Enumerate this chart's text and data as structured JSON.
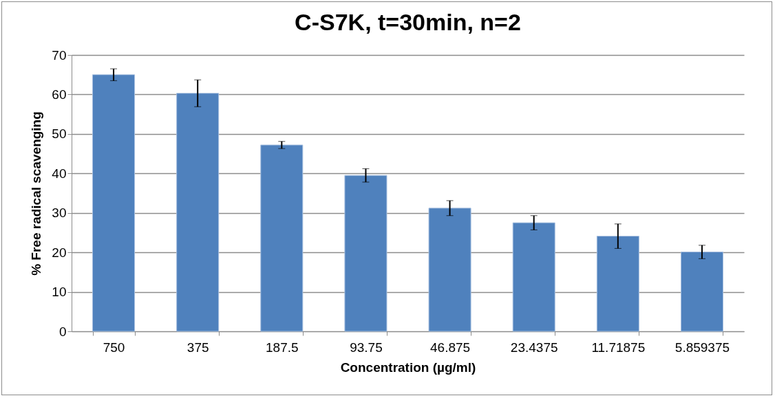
{
  "chart_data": {
    "type": "bar",
    "title": "C-S7K, t=30min, n=2",
    "xlabel": "Concentration (µg/ml)",
    "ylabel": "% Free radical scavenging",
    "categories": [
      "750",
      "375",
      "187.5",
      "93.75",
      "46.875",
      "23.4375",
      "11.71875",
      "5.859375"
    ],
    "values": [
      65.0,
      60.3,
      47.2,
      39.5,
      31.2,
      27.5,
      24.1,
      20.1
    ],
    "errors": [
      1.5,
      3.4,
      0.9,
      1.7,
      1.9,
      1.8,
      3.1,
      1.7
    ],
    "color": "#4f81bd",
    "ylim": [
      0,
      70
    ],
    "yticks": [
      0,
      10,
      20,
      30,
      40,
      50,
      60,
      70
    ],
    "grid": "y"
  }
}
